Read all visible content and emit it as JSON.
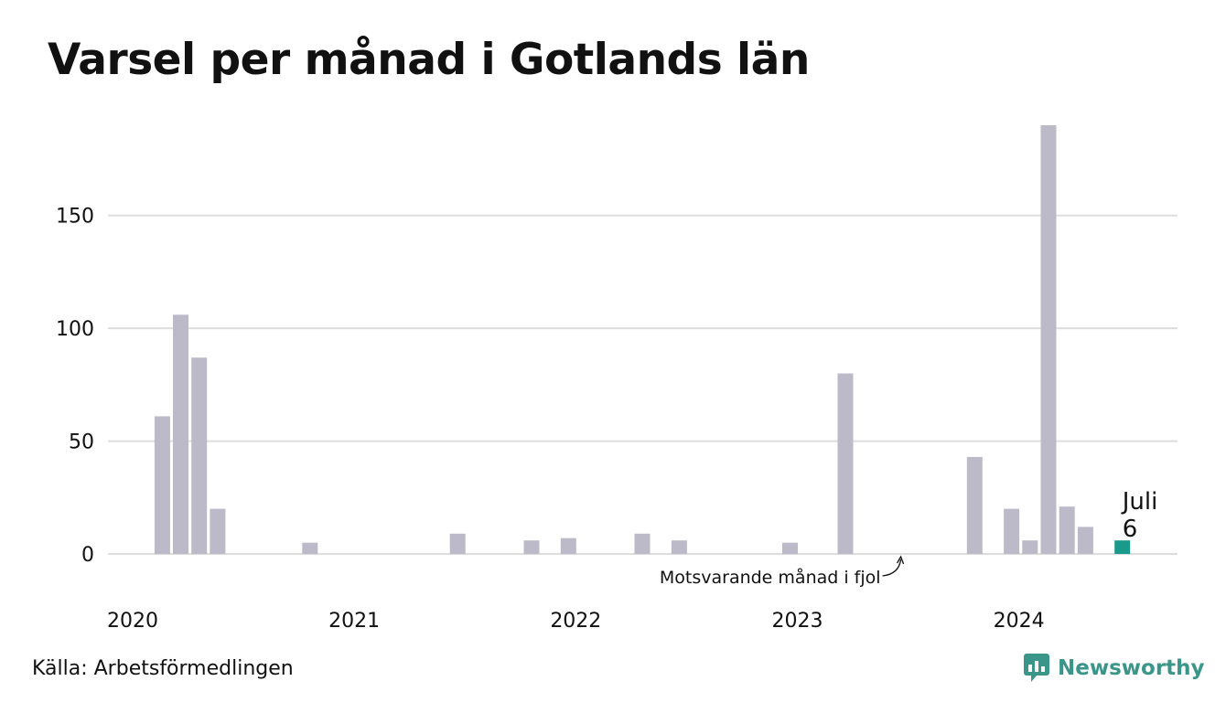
{
  "title": "Varsel per månad i Gotlands län",
  "source": "Källa: Arbetsförmedlingen",
  "brand": "Newsworthy",
  "colors": {
    "bar": "#bcbac9",
    "highlight": "#1a9a8a",
    "grid": "#dddddd",
    "brand": "#3a9688"
  },
  "chart_data": {
    "type": "bar",
    "ylim": [
      0,
      190
    ],
    "y_ticks": [
      "0",
      "50",
      "100",
      "150"
    ],
    "x_ticks": [
      "2020",
      "2021",
      "2022",
      "2023",
      "2024"
    ],
    "grid": true,
    "categories": [
      "2020-01",
      "2020-02",
      "2020-03",
      "2020-04",
      "2020-05",
      "2020-06",
      "2020-07",
      "2020-08",
      "2020-09",
      "2020-10",
      "2020-11",
      "2020-12",
      "2021-01",
      "2021-02",
      "2021-03",
      "2021-04",
      "2021-05",
      "2021-06",
      "2021-07",
      "2021-08",
      "2021-09",
      "2021-10",
      "2021-11",
      "2021-12",
      "2022-01",
      "2022-02",
      "2022-03",
      "2022-04",
      "2022-05",
      "2022-06",
      "2022-07",
      "2022-08",
      "2022-09",
      "2022-10",
      "2022-11",
      "2022-12",
      "2023-01",
      "2023-02",
      "2023-03",
      "2023-04",
      "2023-05",
      "2023-06",
      "2023-07",
      "2023-08",
      "2023-09",
      "2023-10",
      "2023-11",
      "2023-12",
      "2024-01",
      "2024-02",
      "2024-03",
      "2024-04",
      "2024-05",
      "2024-06",
      "2024-07"
    ],
    "values": [
      0,
      0,
      61,
      106,
      87,
      20,
      0,
      0,
      0,
      0,
      5,
      0,
      0,
      0,
      0,
      0,
      0,
      0,
      9,
      0,
      0,
      0,
      6,
      0,
      7,
      0,
      0,
      0,
      9,
      0,
      6,
      0,
      0,
      0,
      0,
      0,
      5,
      0,
      0,
      80,
      0,
      0,
      0,
      0,
      0,
      0,
      43,
      0,
      20,
      6,
      190,
      21,
      12,
      0,
      6
    ],
    "highlight": {
      "category": "2024-07",
      "label": "Juli",
      "value_label": "6"
    },
    "annotation": {
      "text": "Motsvarande månad i fjol",
      "category": "2023-07"
    }
  }
}
